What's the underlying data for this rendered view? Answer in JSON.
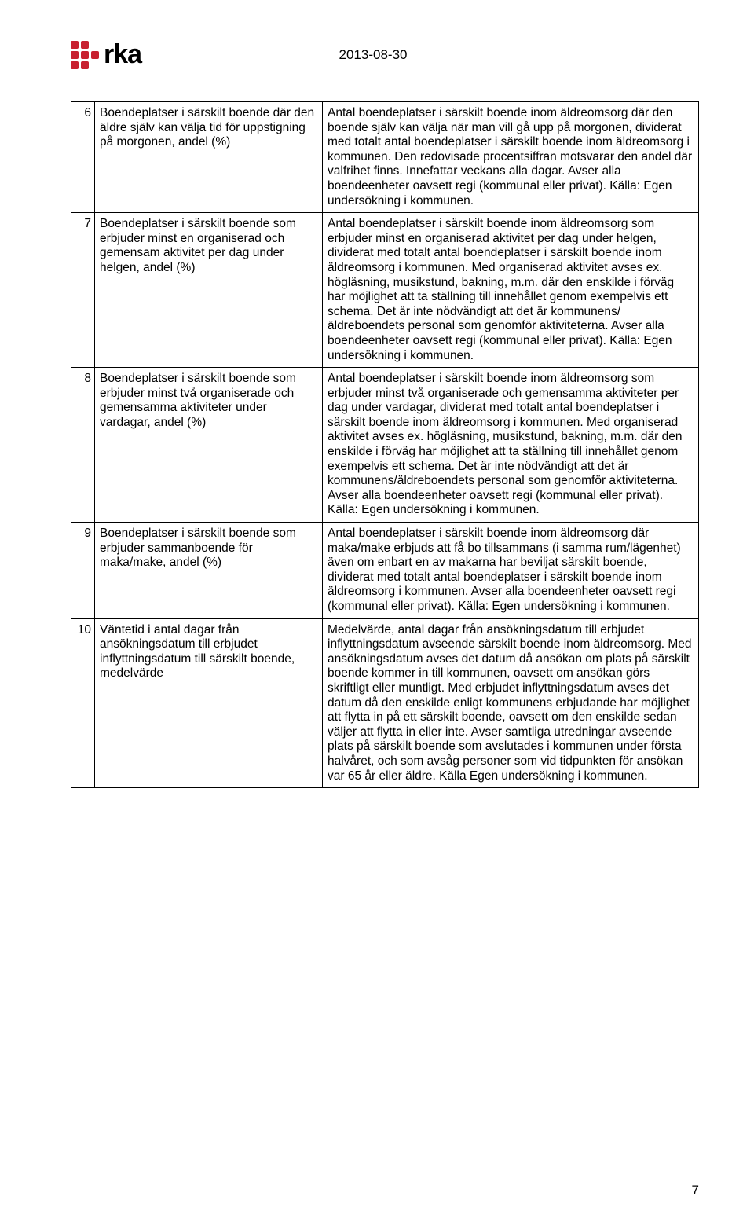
{
  "header": {
    "logo_text": "rka",
    "date": "2013-08-30"
  },
  "rows": [
    {
      "num": "6",
      "left": "Boendeplatser i särskilt boende där den äldre själv kan välja tid för uppstigning på morgonen, andel (%)",
      "right": "Antal boendeplatser i särskilt boende inom äldreomsorg där den boende själv kan välja när man vill gå upp på morgonen, dividerat med totalt antal boendeplatser i särskilt boende inom äldreomsorg i kommunen. Den redovisade procentsiffran motsvarar den andel där valfrihet finns. Innefattar veckans alla dagar. Avser alla boendeenheter oavsett regi (kommunal eller privat). Källa: Egen undersökning i kommunen."
    },
    {
      "num": "7",
      "left": "Boendeplatser i särskilt boende som erbjuder minst en organiserad och gemensam aktivitet per dag under helgen, andel (%)",
      "right": "Antal boendeplatser i särskilt boende inom äldreomsorg som erbjuder minst en organiserad aktivitet per dag under helgen, dividerat med totalt antal boendeplatser i särskilt boende inom äldreomsorg i kommunen. Med organiserad aktivitet avses ex. högläsning, musikstund, bakning, m.m. där den enskilde i förväg har möjlighet att ta ställning till innehållet genom exempelvis ett schema. Det är inte nödvändigt att det är kommunens/ äldreboendets personal som genomför aktiviteterna. Avser alla boendeenheter oavsett regi (kommunal eller privat). Källa: Egen undersökning i kommunen."
    },
    {
      "num": "8",
      "left": "Boendeplatser i särskilt boende som erbjuder minst två organiserade och gemensamma aktiviteter under vardagar, andel (%)",
      "right": "Antal boendeplatser i särskilt boende inom äldreomsorg som erbjuder minst två organiserade och gemensamma aktiviteter per dag under vardagar, dividerat med totalt antal boendeplatser i särskilt boende inom äldreomsorg i kommunen. Med organiserad aktivitet avses ex. högläsning, musikstund, bakning, m.m. där den enskilde i förväg har möjlighet att ta ställning till innehållet genom exempelvis ett schema. Det är inte nödvändigt att det är kommunens/äldreboendets personal som genomför aktiviteterna. Avser alla boendeenheter oavsett regi (kommunal eller privat). Källa: Egen undersökning i kommunen."
    },
    {
      "num": "9",
      "left": "Boendeplatser i särskilt boende som erbjuder sammanboende för maka/make, andel (%)",
      "right": "Antal boendeplatser i särskilt boende inom äldreomsorg där maka/make erbjuds att få bo tillsammans (i samma rum/lägenhet) även om enbart en av makarna har beviljat särskilt boende, dividerat med totalt antal boendeplatser i särskilt boende inom äldreomsorg i kommunen. Avser alla boendeenheter oavsett regi (kommunal eller privat). Källa: Egen undersökning i kommunen."
    },
    {
      "num": "10",
      "left": "Väntetid i antal dagar från ansökningsdatum till erbjudet inflyttningsdatum till särskilt boende, medelvärde",
      "right": "Medelvärde, antal dagar från ansökningsdatum till erbjudet inflyttningsdatum avseende särskilt boende inom äldreomsorg. Med ansökningsdatum avses det datum då ansökan om plats på särskilt boende kommer in till kommunen, oavsett om ansökan görs skriftligt eller muntligt. Med erbjudet inflyttningsdatum avses det datum då den enskilde enligt kommunens erbjudande har möjlighet att flytta in på ett särskilt boende, oavsett om den enskilde sedan väljer att flytta in eller inte. Avser samtliga utredningar avseende plats på särskilt boende som avslutades i kommunen under första halvåret, och som avsåg personer som vid tidpunkten för ansökan var 65 år eller äldre. Källa Egen undersökning i kommunen."
    }
  ],
  "page_number": "7"
}
